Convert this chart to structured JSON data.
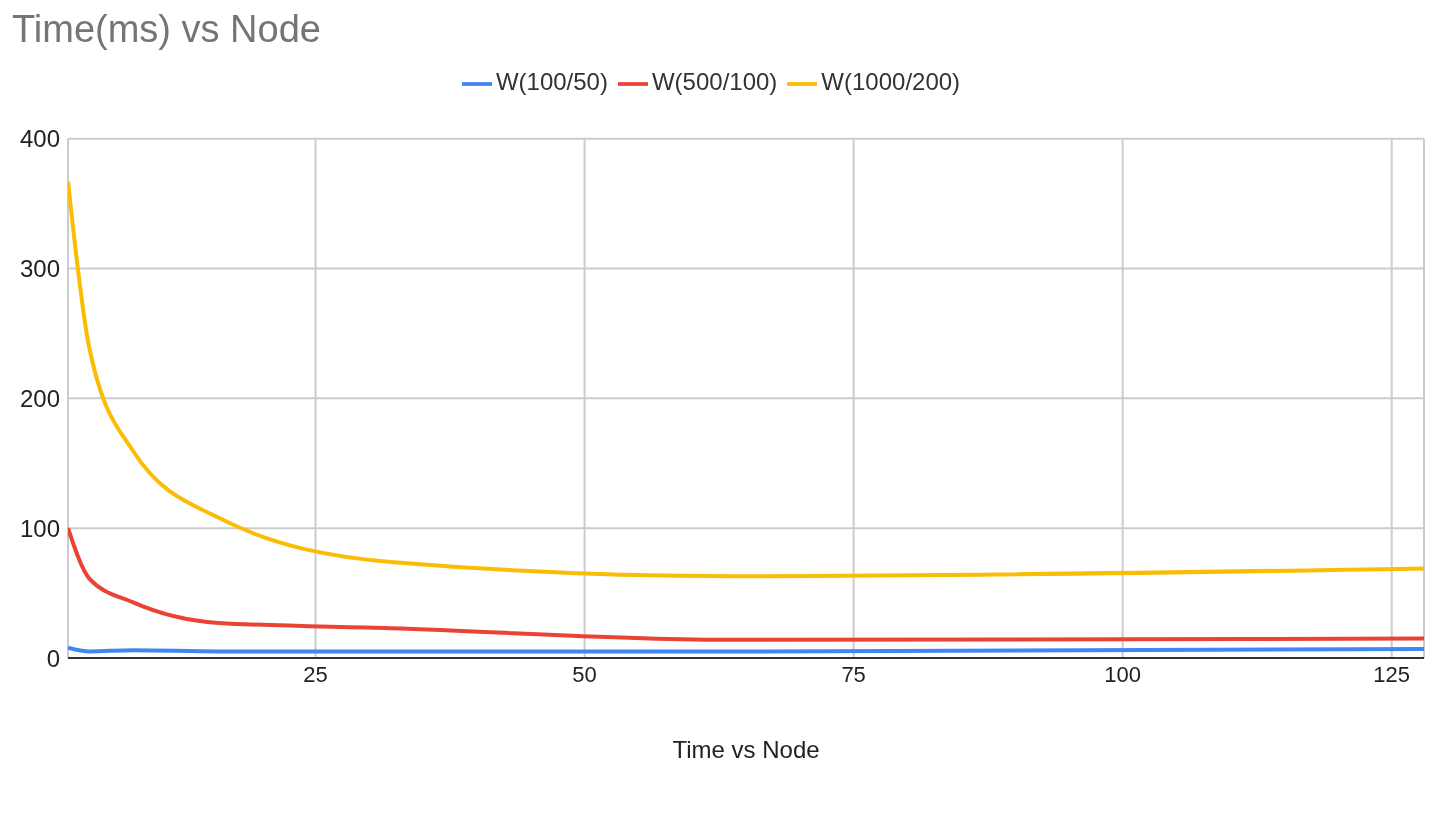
{
  "chart_data": {
    "type": "line",
    "title": "Time(ms) vs Node",
    "xlabel": "Time vs Node",
    "x": [
      2,
      4,
      8,
      16,
      32,
      64,
      128
    ],
    "series": [
      {
        "name": "W(100/50)",
        "color": "#4285f4",
        "values": [
          8,
          5,
          6,
          5,
          5,
          5,
          7
        ]
      },
      {
        "name": "W(500/100)",
        "color": "#ea4335",
        "values": [
          100,
          61,
          43,
          27,
          23,
          14,
          15
        ]
      },
      {
        "name": "W(1000/200)",
        "color": "#fbbc04",
        "values": [
          367,
          238,
          160,
          108,
          74,
          63,
          69
        ]
      }
    ],
    "xlim": [
      2,
      128
    ],
    "xticks": [
      25,
      50,
      75,
      100,
      125
    ],
    "ylim": [
      0,
      400
    ],
    "yticks": [
      0,
      100,
      200,
      300,
      400
    ],
    "grid": true,
    "legend": "top",
    "marker": "none",
    "line_style": "solid"
  }
}
